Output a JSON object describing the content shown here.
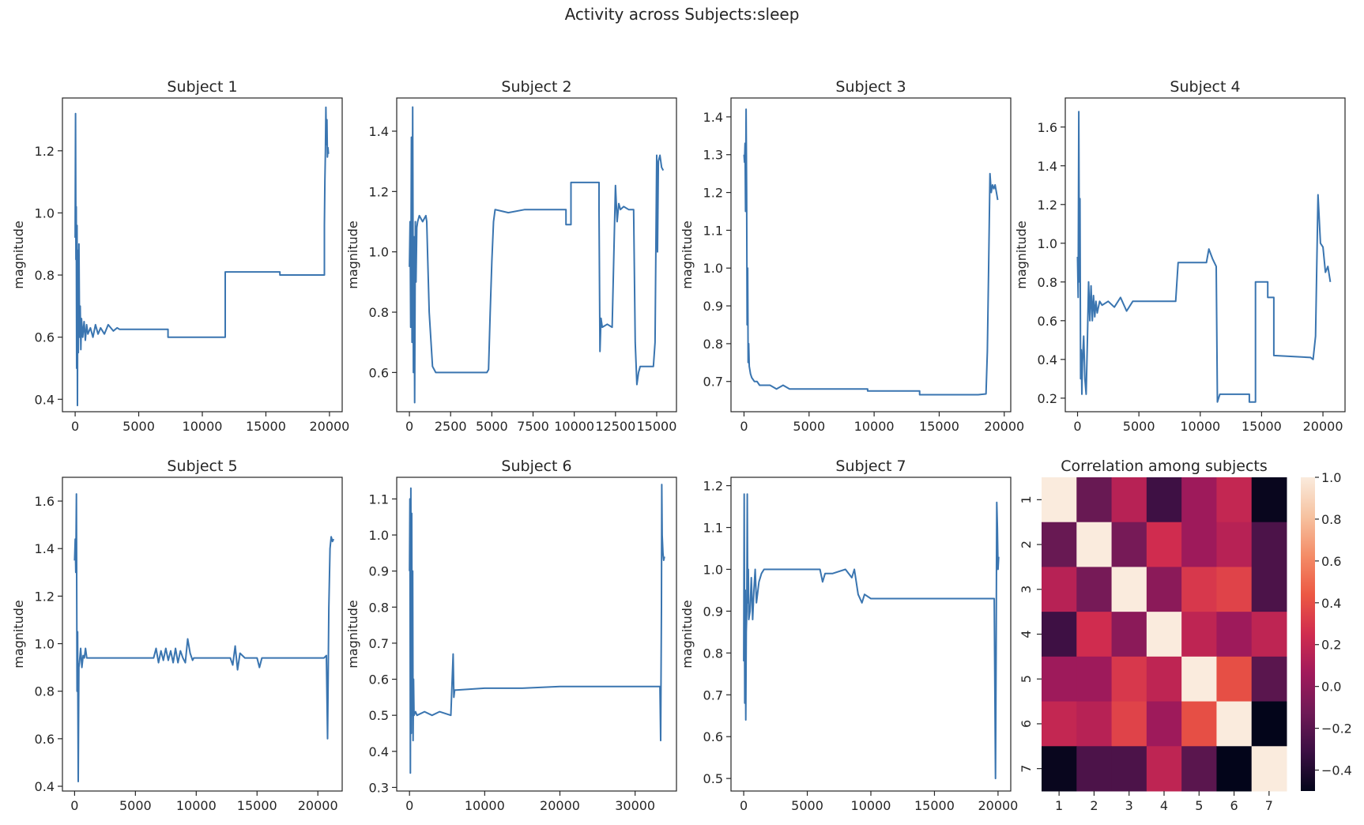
{
  "figure": {
    "suptitle": "Activity across Subjects:sleep"
  },
  "style": {
    "line_color": "#3a75b0",
    "axis_color": "#262626"
  },
  "chart_data": [
    {
      "type": "line",
      "title": "Subject 1",
      "ylabel": "magnitude",
      "xlim": [
        -1000,
        21000
      ],
      "ylim": [
        0.36,
        1.37
      ],
      "xticks": [
        0,
        5000,
        10000,
        15000,
        20000
      ],
      "yticks": [
        0.4,
        0.6,
        0.8,
        1.0,
        1.2
      ],
      "ytick_labels": [
        "0.4",
        "0.6",
        "0.8",
        "1.0",
        "1.2"
      ],
      "series": [
        {
          "x": [
            0,
            30,
            60,
            90,
            120,
            150,
            180,
            210,
            250,
            300,
            350,
            400,
            450,
            500,
            600,
            700,
            800,
            900,
            1000,
            1200,
            1400,
            1600,
            1800,
            2000,
            2300,
            2600,
            3000,
            3300,
            3500,
            7300,
            7300,
            11800,
            11800,
            16100,
            16100,
            19600,
            19600,
            19640,
            19680,
            19720,
            19760,
            19800,
            19840,
            19880,
            19920
          ],
          "y": [
            0.92,
            1.32,
            0.85,
            1.02,
            0.5,
            0.96,
            0.38,
            0.88,
            0.55,
            0.9,
            0.6,
            0.7,
            0.56,
            0.66,
            0.6,
            0.65,
            0.59,
            0.64,
            0.61,
            0.63,
            0.6,
            0.64,
            0.61,
            0.63,
            0.61,
            0.64,
            0.62,
            0.63,
            0.625,
            0.625,
            0.6,
            0.6,
            0.81,
            0.81,
            0.8,
            0.8,
            0.96,
            1.1,
            1.2,
            1.34,
            1.22,
            1.3,
            1.18,
            1.21,
            1.19
          ]
        }
      ]
    },
    {
      "type": "line",
      "title": "Subject 2",
      "ylabel": "magnitude",
      "xlim": [
        -770,
        16200
      ],
      "ylim": [
        0.47,
        1.51
      ],
      "xticks": [
        0,
        2500,
        5000,
        7500,
        10000,
        12500,
        15000
      ],
      "yticks": [
        0.6,
        0.8,
        1.0,
        1.2,
        1.4
      ],
      "ytick_labels": [
        "0.6",
        "0.8",
        "1.0",
        "1.2",
        "1.4"
      ],
      "series": [
        {
          "x": [
            0,
            40,
            80,
            120,
            160,
            200,
            240,
            280,
            320,
            360,
            400,
            450,
            500,
            600,
            800,
            1000,
            1050,
            1100,
            1200,
            1400,
            1600,
            2000,
            3000,
            4000,
            4700,
            4800,
            4900,
            5000,
            5100,
            5200,
            6000,
            7000,
            8000,
            8500,
            9500,
            9500,
            9800,
            9800,
            11500,
            11500,
            11560,
            11620,
            11700,
            12000,
            12300,
            12500,
            12600,
            12700,
            12800,
            13000,
            13300,
            13600,
            13700,
            13800,
            13900,
            14000,
            14500,
            14800,
            14900,
            15000,
            15050,
            15100,
            15200,
            15300,
            15400
          ],
          "y": [
            0.95,
            1.1,
            0.75,
            1.38,
            0.7,
            1.48,
            0.6,
            1.05,
            0.5,
            1.1,
            0.9,
            1.08,
            1.1,
            1.12,
            1.1,
            1.12,
            1.1,
            1.0,
            0.8,
            0.62,
            0.6,
            0.6,
            0.6,
            0.6,
            0.6,
            0.61,
            0.8,
            0.97,
            1.1,
            1.14,
            1.13,
            1.14,
            1.14,
            1.14,
            1.14,
            1.09,
            1.09,
            1.23,
            1.23,
            1.14,
            0.67,
            0.78,
            0.75,
            0.76,
            0.75,
            1.22,
            1.1,
            1.16,
            1.14,
            1.15,
            1.14,
            1.14,
            0.7,
            0.56,
            0.6,
            0.62,
            0.62,
            0.62,
            0.7,
            1.32,
            1.0,
            1.3,
            1.32,
            1.28,
            1.27
          ]
        }
      ]
    },
    {
      "type": "line",
      "title": "Subject 3",
      "ylabel": "magnitude",
      "xlim": [
        -1000,
        20500
      ],
      "ylim": [
        0.62,
        1.45
      ],
      "xticks": [
        0,
        5000,
        10000,
        15000,
        20000
      ],
      "yticks": [
        0.7,
        0.8,
        0.9,
        1.0,
        1.1,
        1.2,
        1.3,
        1.4
      ],
      "ytick_labels": [
        "0.7",
        "0.8",
        "0.9",
        "1.0",
        "1.1",
        "1.2",
        "1.3",
        "1.4"
      ],
      "series": [
        {
          "x": [
            0,
            40,
            80,
            120,
            160,
            200,
            240,
            280,
            320,
            360,
            400,
            500,
            600,
            800,
            1000,
            1200,
            1500,
            2000,
            2500,
            3000,
            3500,
            4000,
            5000,
            7000,
            9500,
            9500,
            13500,
            13500,
            17500,
            18000,
            18600,
            18700,
            18800,
            18900,
            19000,
            19100,
            19200,
            19300,
            19400,
            19500
          ],
          "y": [
            1.3,
            1.28,
            1.33,
            1.15,
            1.42,
            1.2,
            0.85,
            1.0,
            0.75,
            0.8,
            0.74,
            0.72,
            0.71,
            0.7,
            0.7,
            0.69,
            0.69,
            0.69,
            0.68,
            0.69,
            0.68,
            0.68,
            0.68,
            0.68,
            0.68,
            0.675,
            0.675,
            0.665,
            0.665,
            0.665,
            0.667,
            0.78,
            1.0,
            1.25,
            1.2,
            1.22,
            1.21,
            1.22,
            1.2,
            1.18
          ]
        }
      ]
    },
    {
      "type": "line",
      "title": "Subject 4",
      "ylabel": "magnitude",
      "xlim": [
        -1000,
        21800
      ],
      "ylim": [
        0.13,
        1.75
      ],
      "xticks": [
        0,
        5000,
        10000,
        15000,
        20000
      ],
      "yticks": [
        0.2,
        0.4,
        0.6,
        0.8,
        1.0,
        1.2,
        1.4,
        1.6
      ],
      "ytick_labels": [
        "0.2",
        "0.4",
        "0.6",
        "0.8",
        "1.0",
        "1.2",
        "1.4",
        "1.6"
      ],
      "series": [
        {
          "x": [
            0,
            50,
            100,
            150,
            200,
            250,
            300,
            350,
            400,
            500,
            600,
            700,
            800,
            900,
            1000,
            1100,
            1200,
            1300,
            1400,
            1500,
            1600,
            1800,
            2000,
            2500,
            3000,
            3500,
            4000,
            4500,
            5000,
            8000,
            8200,
            10500,
            10700,
            11000,
            11300,
            11400,
            11600,
            14000,
            14000,
            14500,
            14500,
            15500,
            15500,
            16000,
            16000,
            19000,
            19200,
            19400,
            19600,
            19800,
            20000,
            20200,
            20400,
            20600
          ],
          "y": [
            0.93,
            0.72,
            1.68,
            0.8,
            1.23,
            0.3,
            0.45,
            0.22,
            0.38,
            0.52,
            0.3,
            0.22,
            0.48,
            0.8,
            0.6,
            0.78,
            0.6,
            0.73,
            0.62,
            0.7,
            0.64,
            0.7,
            0.68,
            0.7,
            0.67,
            0.72,
            0.65,
            0.7,
            0.7,
            0.7,
            0.9,
            0.9,
            0.97,
            0.92,
            0.88,
            0.18,
            0.22,
            0.22,
            0.18,
            0.18,
            0.8,
            0.8,
            0.72,
            0.72,
            0.42,
            0.41,
            0.4,
            0.52,
            1.25,
            1.0,
            0.98,
            0.85,
            0.88,
            0.8
          ]
        }
      ]
    },
    {
      "type": "line",
      "title": "Subject 5",
      "ylabel": "magnitude",
      "xlim": [
        -1000,
        22000
      ],
      "ylim": [
        0.38,
        1.7
      ],
      "xticks": [
        0,
        5000,
        10000,
        15000,
        20000
      ],
      "yticks": [
        0.4,
        0.6,
        0.8,
        1.0,
        1.2,
        1.4,
        1.6
      ],
      "ytick_labels": [
        "0.4",
        "0.6",
        "0.8",
        "1.0",
        "1.2",
        "1.4",
        "1.6"
      ],
      "series": [
        {
          "x": [
            0,
            50,
            100,
            150,
            200,
            250,
            300,
            350,
            400,
            500,
            600,
            700,
            800,
            900,
            1000,
            1500,
            2000,
            6500,
            6700,
            6900,
            7100,
            7300,
            7500,
            7700,
            7900,
            8100,
            8300,
            8500,
            8700,
            8900,
            9100,
            9300,
            9500,
            9700,
            9800,
            10000,
            10500,
            12800,
            13000,
            13200,
            13400,
            13600,
            14000,
            15000,
            15200,
            15400,
            20500,
            20700,
            20800,
            20900,
            21000,
            21100,
            21200,
            21300
          ],
          "y": [
            1.35,
            1.44,
            1.3,
            1.63,
            0.8,
            1.05,
            0.42,
            0.9,
            0.92,
            0.98,
            0.9,
            0.95,
            0.94,
            0.98,
            0.94,
            0.94,
            0.94,
            0.94,
            0.98,
            0.92,
            0.97,
            0.93,
            0.98,
            0.93,
            0.97,
            0.92,
            0.98,
            0.92,
            0.97,
            0.94,
            0.92,
            1.02,
            0.96,
            0.93,
            0.94,
            0.94,
            0.94,
            0.94,
            0.91,
            0.99,
            0.89,
            0.96,
            0.94,
            0.94,
            0.9,
            0.94,
            0.94,
            0.95,
            0.6,
            1.15,
            1.4,
            1.45,
            1.43,
            1.44
          ]
        }
      ]
    },
    {
      "type": "line",
      "title": "Subject 6",
      "ylabel": "magnitude",
      "xlim": [
        -1700,
        35500
      ],
      "ylim": [
        0.29,
        1.16
      ],
      "xticks": [
        0,
        10000,
        20000,
        30000
      ],
      "yticks": [
        0.3,
        0.4,
        0.5,
        0.6,
        0.7,
        0.8,
        0.9,
        1.0,
        1.1
      ],
      "ytick_labels": [
        "0.3",
        "0.4",
        "0.5",
        "0.6",
        "0.7",
        "0.8",
        "0.9",
        "1.0",
        "1.1"
      ],
      "series": [
        {
          "x": [
            0,
            60,
            120,
            180,
            240,
            300,
            360,
            420,
            480,
            540,
            600,
            800,
            1000,
            2000,
            3000,
            4000,
            5500,
            5800,
            5900,
            6000,
            6200,
            10000,
            15000,
            20000,
            25000,
            30000,
            33300,
            33400,
            33500,
            33550,
            33600,
            33700,
            33800,
            33900
          ],
          "y": [
            0.9,
            1.1,
            0.34,
            1.13,
            0.45,
            1.06,
            0.5,
            0.9,
            0.43,
            0.6,
            0.5,
            0.51,
            0.5,
            0.51,
            0.5,
            0.51,
            0.5,
            0.67,
            0.55,
            0.57,
            0.57,
            0.575,
            0.575,
            0.58,
            0.58,
            0.58,
            0.58,
            0.43,
            0.8,
            1.14,
            1.0,
            0.95,
            0.93,
            0.94
          ]
        }
      ]
    },
    {
      "type": "line",
      "title": "Subject 7",
      "ylabel": "magnitude",
      "xlim": [
        -1000,
        21000
      ],
      "ylim": [
        0.47,
        1.22
      ],
      "xticks": [
        0,
        5000,
        10000,
        15000,
        20000
      ],
      "yticks": [
        0.5,
        0.6,
        0.7,
        0.8,
        0.9,
        1.0,
        1.1,
        1.2
      ],
      "ytick_labels": [
        "0.5",
        "0.6",
        "0.7",
        "0.8",
        "0.9",
        "1.0",
        "1.1",
        "1.2"
      ],
      "series": [
        {
          "x": [
            0,
            40,
            80,
            120,
            160,
            200,
            240,
            280,
            320,
            360,
            400,
            500,
            600,
            700,
            800,
            900,
            1000,
            1200,
            1400,
            1600,
            2000,
            3000,
            4000,
            5000,
            6000,
            6200,
            6400,
            7000,
            8000,
            8500,
            8700,
            9000,
            9300,
            9500,
            10000,
            12000,
            14000,
            16000,
            18000,
            19500,
            19700,
            19800,
            19850,
            19900,
            19950,
            20000,
            20050
          ],
          "y": [
            0.78,
            1.18,
            0.68,
            0.95,
            0.64,
            0.85,
            0.9,
            1.18,
            0.92,
            1.0,
            0.88,
            0.9,
            0.98,
            0.88,
            0.95,
            1.0,
            0.92,
            0.97,
            0.99,
            1.0,
            1.0,
            1.0,
            1.0,
            1.0,
            1.0,
            0.97,
            0.99,
            0.99,
            1.0,
            0.98,
            1.0,
            0.94,
            0.92,
            0.94,
            0.93,
            0.93,
            0.93,
            0.93,
            0.93,
            0.93,
            0.93,
            0.5,
            0.8,
            1.16,
            1.1,
            1.0,
            1.03
          ]
        }
      ]
    },
    {
      "type": "heatmap",
      "title": "Correlation among subjects",
      "x_categories": [
        "1",
        "2",
        "3",
        "4",
        "5",
        "6",
        "7"
      ],
      "y_categories": [
        "1",
        "2",
        "3",
        "4",
        "5",
        "6",
        "7"
      ],
      "values": [
        [
          1.0,
          -0.15,
          0.15,
          -0.3,
          0.05,
          0.2,
          -0.48
        ],
        [
          -0.15,
          1.0,
          -0.1,
          0.25,
          0.05,
          0.15,
          -0.25
        ],
        [
          0.15,
          -0.1,
          1.0,
          -0.02,
          0.3,
          0.35,
          -0.25
        ],
        [
          -0.3,
          0.25,
          -0.02,
          1.0,
          0.18,
          0.05,
          0.18
        ],
        [
          0.05,
          0.05,
          0.3,
          0.18,
          1.0,
          0.4,
          -0.2
        ],
        [
          0.2,
          0.15,
          0.35,
          0.05,
          0.4,
          1.0,
          -0.5
        ],
        [
          -0.48,
          -0.25,
          -0.25,
          0.18,
          -0.2,
          -0.5,
          1.0
        ]
      ],
      "vmin": -0.5,
      "vmax": 1.0,
      "colorbar_ticks": [
        -0.4,
        -0.2,
        0.0,
        0.2,
        0.4,
        0.6,
        0.8,
        1.0
      ],
      "colorbar_labels": [
        "−0.4",
        "−0.2",
        "0.0",
        "0.2",
        "0.4",
        "0.6",
        "0.8",
        "1.0"
      ],
      "colormap": [
        "#03051a",
        "#3b0f43",
        "#6f1a56",
        "#a11a5b",
        "#d02c4f",
        "#ec5843",
        "#f48c67",
        "#f6c2a0",
        "#faebdd"
      ]
    }
  ]
}
